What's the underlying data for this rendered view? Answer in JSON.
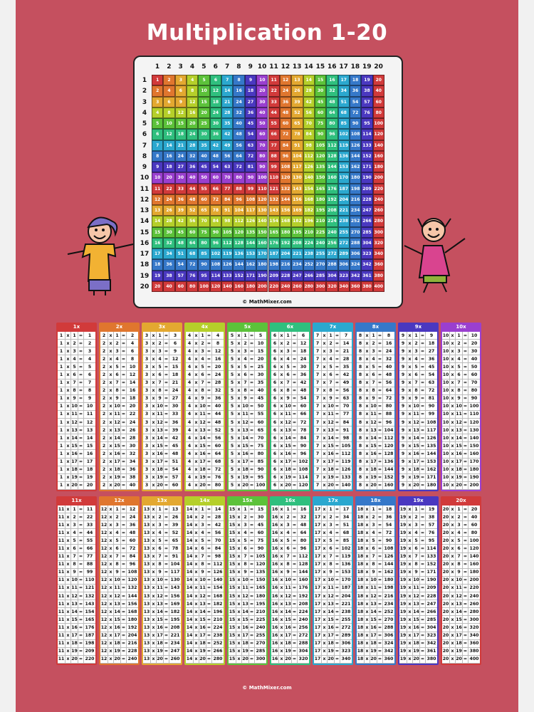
{
  "title": "Multiplication 1-20",
  "copyright": "© MathMixer.com",
  "range": {
    "min": 1,
    "max": 20
  },
  "palette": [
    "#d13a3a",
    "#e0762e",
    "#e3a830",
    "#b5cf2a",
    "#5cc23a",
    "#2fbf7e",
    "#2ba8cf",
    "#3578c9",
    "#4a38c0",
    "#9a3fcf"
  ],
  "background": "#c5505f",
  "grid_headers": [
    1,
    2,
    3,
    4,
    5,
    6,
    7,
    8,
    9,
    10,
    11,
    12,
    13,
    14,
    15,
    16,
    17,
    18,
    19,
    20
  ],
  "table_labels": [
    "1x",
    "2x",
    "3x",
    "4x",
    "5x",
    "6x",
    "7x",
    "8x",
    "9x",
    "10x",
    "11x",
    "12x",
    "13x",
    "14x",
    "15x",
    "16x",
    "17x",
    "18x",
    "19x",
    "20x"
  ],
  "fact_symbols": {
    "times": "x",
    "equals": "="
  },
  "illustrations": [
    "boy-with-cap",
    "girl-with-pigtails"
  ]
}
